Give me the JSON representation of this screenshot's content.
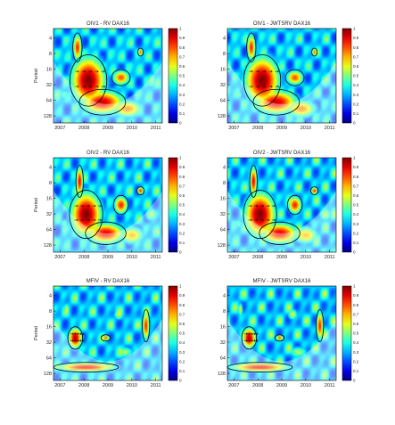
{
  "chart_data": [
    {
      "type": "heatmap",
      "title": "OIV1 - RV  DAX16",
      "ylabel": "Period",
      "x_ticks": [
        "2007",
        "2008",
        "2009",
        "2010",
        "2011"
      ],
      "y_ticks": [
        "4",
        "8",
        "16",
        "32",
        "64",
        "128"
      ],
      "colorbar_ticks": [
        "0",
        "0.1",
        "0.2",
        "0.3",
        "0.4",
        "0.5",
        "0.6",
        "0.7",
        "0.8",
        "0.9",
        "1"
      ],
      "colorbar_range": [
        0,
        1
      ],
      "colormap": "jet",
      "blobs": [
        {
          "x": 0.32,
          "y": 0.55,
          "rx": 0.2,
          "ry": 0.32,
          "v": 1
        },
        {
          "x": 0.22,
          "y": 0.2,
          "rx": 0.05,
          "ry": 0.18,
          "v": 0.85
        },
        {
          "x": 0.45,
          "y": 0.78,
          "rx": 0.25,
          "ry": 0.16,
          "v": 0.92
        },
        {
          "x": 0.62,
          "y": 0.52,
          "rx": 0.1,
          "ry": 0.1,
          "v": 0.8
        },
        {
          "x": 0.68,
          "y": 0.85,
          "rx": 0.18,
          "ry": 0.12,
          "v": 0.75
        },
        {
          "x": 0.8,
          "y": 0.25,
          "rx": 0.03,
          "ry": 0.05,
          "v": 0.8
        },
        {
          "x": 0.9,
          "y": 0.55,
          "rx": 0.08,
          "ry": 0.12,
          "v": 0.5
        },
        {
          "x": 0.1,
          "y": 0.7,
          "rx": 0.06,
          "ry": 0.08,
          "v": 0.45
        }
      ]
    },
    {
      "type": "heatmap",
      "title": "OIV1 - JWTSRV  DAX16",
      "ylabel": "",
      "x_ticks": [
        "2007",
        "2008",
        "2009",
        "2010",
        "2011"
      ],
      "y_ticks": [
        "4",
        "8",
        "16",
        "32",
        "64",
        "128"
      ],
      "colorbar_ticks": [
        "0",
        "0.1",
        "0.2",
        "0.3",
        "0.4",
        "0.5",
        "0.6",
        "0.7",
        "0.8",
        "0.9",
        "1"
      ],
      "colorbar_range": [
        0,
        1
      ],
      "colormap": "jet",
      "blobs": [
        {
          "x": 0.32,
          "y": 0.55,
          "rx": 0.2,
          "ry": 0.32,
          "v": 1
        },
        {
          "x": 0.22,
          "y": 0.2,
          "rx": 0.05,
          "ry": 0.18,
          "v": 0.85
        },
        {
          "x": 0.45,
          "y": 0.78,
          "rx": 0.25,
          "ry": 0.16,
          "v": 0.92
        },
        {
          "x": 0.62,
          "y": 0.52,
          "rx": 0.1,
          "ry": 0.1,
          "v": 0.8
        },
        {
          "x": 0.68,
          "y": 0.85,
          "rx": 0.18,
          "ry": 0.12,
          "v": 0.75
        },
        {
          "x": 0.8,
          "y": 0.25,
          "rx": 0.03,
          "ry": 0.05,
          "v": 0.8
        },
        {
          "x": 0.9,
          "y": 0.55,
          "rx": 0.08,
          "ry": 0.12,
          "v": 0.5
        },
        {
          "x": 0.1,
          "y": 0.7,
          "rx": 0.06,
          "ry": 0.08,
          "v": 0.45
        }
      ]
    },
    {
      "type": "heatmap",
      "title": "OIV2 - RV  DAX16",
      "ylabel": "Period",
      "x_ticks": [
        "2007",
        "2008",
        "2009",
        "2010",
        "2011"
      ],
      "y_ticks": [
        "4",
        "8",
        "16",
        "32",
        "64",
        "128"
      ],
      "colorbar_ticks": [
        "0",
        "0.1",
        "0.2",
        "0.3",
        "0.4",
        "0.5",
        "0.6",
        "0.7",
        "0.8",
        "0.9",
        "1"
      ],
      "colorbar_range": [
        0,
        1
      ],
      "colormap": "jet",
      "blobs": [
        {
          "x": 0.3,
          "y": 0.6,
          "rx": 0.18,
          "ry": 0.3,
          "v": 1
        },
        {
          "x": 0.24,
          "y": 0.25,
          "rx": 0.04,
          "ry": 0.2,
          "v": 0.9
        },
        {
          "x": 0.48,
          "y": 0.8,
          "rx": 0.22,
          "ry": 0.14,
          "v": 0.9
        },
        {
          "x": 0.62,
          "y": 0.5,
          "rx": 0.08,
          "ry": 0.12,
          "v": 0.85
        },
        {
          "x": 0.72,
          "y": 0.82,
          "rx": 0.15,
          "ry": 0.12,
          "v": 0.7
        },
        {
          "x": 0.8,
          "y": 0.35,
          "rx": 0.04,
          "ry": 0.05,
          "v": 0.85
        },
        {
          "x": 0.9,
          "y": 0.6,
          "rx": 0.08,
          "ry": 0.1,
          "v": 0.55
        },
        {
          "x": 0.1,
          "y": 0.7,
          "rx": 0.06,
          "ry": 0.08,
          "v": 0.45
        }
      ]
    },
    {
      "type": "heatmap",
      "title": "OIV2 - JWTSRV  DAX16",
      "ylabel": "",
      "x_ticks": [
        "2007",
        "2008",
        "2009",
        "2010",
        "2011"
      ],
      "y_ticks": [
        "4",
        "8",
        "16",
        "32",
        "64",
        "128"
      ],
      "colorbar_ticks": [
        "0",
        "0.1",
        "0.2",
        "0.3",
        "0.4",
        "0.5",
        "0.6",
        "0.7",
        "0.8",
        "0.9",
        "1"
      ],
      "colorbar_range": [
        0,
        1
      ],
      "colormap": "jet",
      "blobs": [
        {
          "x": 0.3,
          "y": 0.6,
          "rx": 0.18,
          "ry": 0.3,
          "v": 1
        },
        {
          "x": 0.24,
          "y": 0.25,
          "rx": 0.04,
          "ry": 0.2,
          "v": 0.9
        },
        {
          "x": 0.48,
          "y": 0.8,
          "rx": 0.22,
          "ry": 0.14,
          "v": 0.9
        },
        {
          "x": 0.62,
          "y": 0.5,
          "rx": 0.08,
          "ry": 0.12,
          "v": 0.85
        },
        {
          "x": 0.72,
          "y": 0.82,
          "rx": 0.15,
          "ry": 0.12,
          "v": 0.7
        },
        {
          "x": 0.8,
          "y": 0.35,
          "rx": 0.04,
          "ry": 0.05,
          "v": 0.85
        },
        {
          "x": 0.9,
          "y": 0.6,
          "rx": 0.08,
          "ry": 0.1,
          "v": 0.55
        },
        {
          "x": 0.1,
          "y": 0.7,
          "rx": 0.06,
          "ry": 0.08,
          "v": 0.45
        }
      ]
    },
    {
      "type": "heatmap",
      "title": "MFIV - RV  DAX16",
      "ylabel": "Period",
      "x_ticks": [
        "2007",
        "2008",
        "2009",
        "2010",
        "2011"
      ],
      "y_ticks": [
        "4",
        "8",
        "16",
        "32",
        "64",
        "128"
      ],
      "colorbar_ticks": [
        "0",
        "0.1",
        "0.2",
        "0.3",
        "0.4",
        "0.5",
        "0.6",
        "0.7",
        "0.8",
        "0.9",
        "1"
      ],
      "colorbar_range": [
        0,
        1
      ],
      "colormap": "jet",
      "blobs": [
        {
          "x": 0.2,
          "y": 0.55,
          "rx": 0.08,
          "ry": 0.14,
          "v": 0.95
        },
        {
          "x": 0.3,
          "y": 0.86,
          "rx": 0.35,
          "ry": 0.06,
          "v": 0.9
        },
        {
          "x": 0.48,
          "y": 0.55,
          "rx": 0.05,
          "ry": 0.04,
          "v": 0.8
        },
        {
          "x": 0.85,
          "y": 0.42,
          "rx": 0.04,
          "ry": 0.2,
          "v": 0.85
        },
        {
          "x": 0.12,
          "y": 0.25,
          "rx": 0.03,
          "ry": 0.1,
          "v": 0.6
        },
        {
          "x": 0.6,
          "y": 0.3,
          "rx": 0.06,
          "ry": 0.08,
          "v": 0.6
        },
        {
          "x": 0.65,
          "y": 0.7,
          "rx": 0.12,
          "ry": 0.08,
          "v": 0.55
        }
      ]
    },
    {
      "type": "heatmap",
      "title": "MFIV - JWTSRV  DAX16",
      "ylabel": "",
      "x_ticks": [
        "2007",
        "2008",
        "2009",
        "2010",
        "2011"
      ],
      "y_ticks": [
        "4",
        "8",
        "16",
        "32",
        "64",
        "128"
      ],
      "colorbar_ticks": [
        "0",
        "0.1",
        "0.2",
        "0.3",
        "0.4",
        "0.5",
        "0.6",
        "0.7",
        "0.8",
        "0.9",
        "1"
      ],
      "colorbar_range": [
        0,
        1
      ],
      "colormap": "jet",
      "blobs": [
        {
          "x": 0.2,
          "y": 0.55,
          "rx": 0.08,
          "ry": 0.14,
          "v": 0.95
        },
        {
          "x": 0.3,
          "y": 0.86,
          "rx": 0.35,
          "ry": 0.06,
          "v": 0.9
        },
        {
          "x": 0.48,
          "y": 0.55,
          "rx": 0.05,
          "ry": 0.04,
          "v": 0.8
        },
        {
          "x": 0.85,
          "y": 0.42,
          "rx": 0.04,
          "ry": 0.2,
          "v": 0.85
        },
        {
          "x": 0.12,
          "y": 0.25,
          "rx": 0.03,
          "ry": 0.1,
          "v": 0.6
        },
        {
          "x": 0.6,
          "y": 0.3,
          "rx": 0.06,
          "ry": 0.08,
          "v": 0.6
        },
        {
          "x": 0.65,
          "y": 0.7,
          "rx": 0.12,
          "ry": 0.08,
          "v": 0.55
        }
      ]
    }
  ]
}
